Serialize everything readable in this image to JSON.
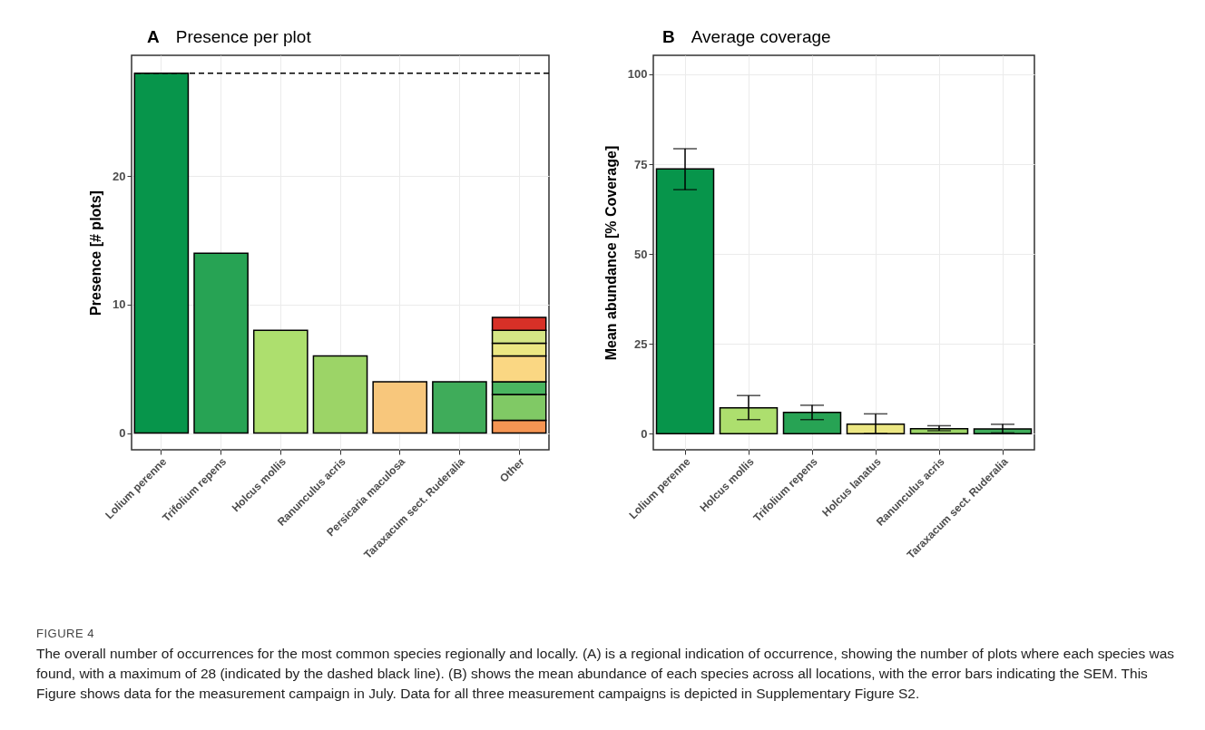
{
  "chart_data": [
    {
      "type": "bar",
      "title": "Presence per plot",
      "ylabel": "Presence [# plots]",
      "stacked": true,
      "categories": [
        "Lolium perenne",
        "Trifolium repens",
        "Holcus mollis",
        "Ranunculus acris",
        "Persicaria maculosa",
        "Taraxacum sect. Ruderalia",
        "Other"
      ],
      "series": [
        {
          "colors": [
            "#07954b",
            "#27a354",
            "#addf6e",
            "#9cd467",
            "#f8c77c",
            "#3fac5a",
            null
          ],
          "values": [
            28,
            14,
            8,
            6,
            4,
            4,
            null
          ]
        },
        {
          "color": "#f59553",
          "values": [
            null,
            null,
            null,
            null,
            null,
            null,
            1
          ]
        },
        {
          "color": "#80c965",
          "values": [
            null,
            null,
            null,
            null,
            null,
            null,
            2
          ]
        },
        {
          "color": "#4ab560",
          "values": [
            null,
            null,
            null,
            null,
            null,
            null,
            1
          ]
        },
        {
          "color": "#fad783",
          "values": [
            null,
            null,
            null,
            null,
            null,
            null,
            2
          ]
        },
        {
          "color": "#ece783",
          "values": [
            null,
            null,
            null,
            null,
            null,
            null,
            1
          ]
        },
        {
          "color": "#d5e685",
          "values": [
            null,
            null,
            null,
            null,
            null,
            null,
            1
          ]
        },
        {
          "color": "#d73027",
          "values": [
            null,
            null,
            null,
            null,
            null,
            null,
            1
          ]
        }
      ],
      "ylim": [
        -1.3,
        29.4
      ],
      "yticks": [
        0,
        10,
        20
      ],
      "grid": true,
      "ref_lines": [
        {
          "axis": "y",
          "value": 28,
          "line_style": "dashed",
          "color": "#000000"
        }
      ],
      "annotations": [
        "A",
        "FIGURE 4",
        "The overall number of occurrences for the most common species regionally and locally. (A) is a regional indication of occurrence, showing the number of plots where each species was found, with a maximum of 28 (indicated by the dashed black line). (B) shows the mean abundance of each species across all locations, with the error bars indicating the SEM. This Figure shows data for the measurement campaign in July. Data for all three measurement campaigns is depicted in Supplementary Figure S2."
      ]
    },
    {
      "type": "bar",
      "title": "Average coverage",
      "ylabel": "Mean abundance [% Coverage]",
      "categories": [
        "Lolium perenne",
        "Holcus mollis",
        "Trifolium repens",
        "Holcus lanatus",
        "Ranunculus acris",
        "Taraxacum sect. Ruderalia"
      ],
      "values": [
        73.7,
        7.2,
        5.9,
        2.6,
        1.4,
        1.3
      ],
      "colors": [
        "#07954b",
        "#addf6e",
        "#27a354",
        "#ece783",
        "#9cd467",
        "#3fac5a"
      ],
      "errors": [
        [
          67.9,
          79.3
        ],
        [
          3.9,
          10.6
        ],
        [
          3.9,
          7.9
        ],
        [
          0,
          5.5
        ],
        [
          0.8,
          2.2
        ],
        [
          0.2,
          2.6
        ]
      ],
      "ylim": [
        -4.5,
        105.3
      ],
      "yticks": [
        0,
        25,
        50,
        75,
        100
      ],
      "grid": true,
      "annotations": [
        "B"
      ]
    }
  ]
}
